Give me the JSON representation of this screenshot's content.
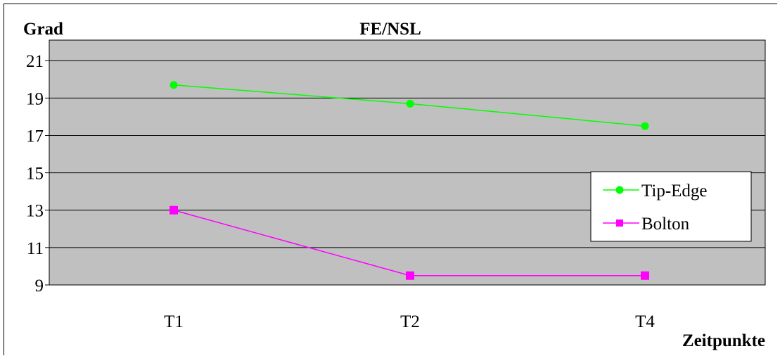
{
  "chart_data": {
    "type": "line",
    "title": "FE/NSL",
    "ylabel": "Grad",
    "xlabel": "Zeitpunkte",
    "categories": [
      "T1",
      "T2",
      "T4"
    ],
    "ylim": [
      9,
      21
    ],
    "yticks": [
      9,
      11,
      13,
      15,
      17,
      19,
      21
    ],
    "grid": true,
    "legend_position": "right",
    "series": [
      {
        "name": "Tip-Edge",
        "values": [
          19.7,
          18.7,
          17.5
        ],
        "color": "#00ff00",
        "marker": "circle"
      },
      {
        "name": "Bolton",
        "values": [
          13.0,
          9.5,
          9.5
        ],
        "color": "#ff00ff",
        "marker": "square"
      }
    ],
    "plot_background": "#c0c0c0"
  }
}
